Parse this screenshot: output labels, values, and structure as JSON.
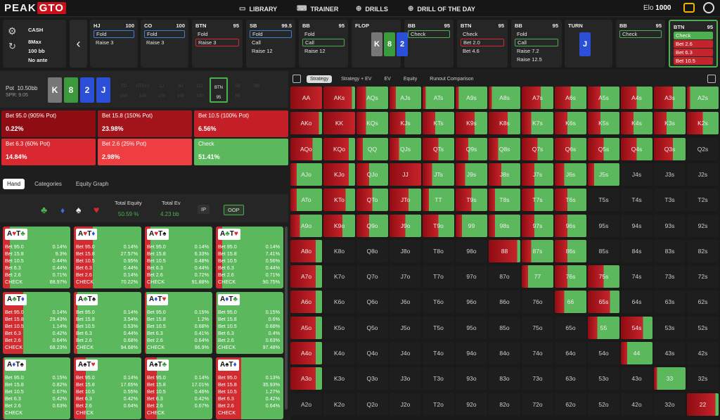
{
  "nav": {
    "logo1": "PEAK",
    "logo2": "GTO",
    "library": "LIBRARY",
    "trainer": "TRAINER",
    "drills": "DRILLS",
    "drill_day": "DRILL OF THE DAY",
    "elo_label": "Elo",
    "elo": "1000"
  },
  "settings": {
    "game": "CASH",
    "table": "8Max",
    "stack": "100 bb",
    "ante": "No ante"
  },
  "columns": [
    {
      "pos": "HJ",
      "stack": "100",
      "actions": [
        "Fold",
        "Raise 3"
      ],
      "sel": 0
    },
    {
      "pos": "CO",
      "stack": "100",
      "actions": [
        "Fold",
        "Raise 3"
      ],
      "sel": 0
    },
    {
      "pos": "BTN",
      "stack": "95",
      "actions": [
        "Fold",
        "Raise 3"
      ],
      "sel": 1
    },
    {
      "pos": "SB",
      "stack": "99.5",
      "actions": [
        "Fold",
        "Call",
        "Raise 12"
      ],
      "sel": 0
    },
    {
      "pos": "BB",
      "stack": "95",
      "actions": [
        "Fold",
        "Call",
        "Raise 12"
      ],
      "sel": 1
    },
    {
      "pos": "FLOP",
      "stack": "",
      "actions": [],
      "sel": -1
    },
    {
      "pos": "BB",
      "stack": "95",
      "actions": [
        "Check"
      ],
      "sel": 0
    },
    {
      "pos": "BTN",
      "stack": "95",
      "actions": [
        "Check",
        "Bet 2.0",
        "Bet 4.6"
      ],
      "sel": 1
    },
    {
      "pos": "BB",
      "stack": "95",
      "actions": [
        "Fold",
        "Call",
        "Raise 7.2",
        "Raise 12.5"
      ],
      "sel": 1
    },
    {
      "pos": "TURN",
      "stack": "",
      "actions": [],
      "sel": -1
    },
    {
      "pos": "BB",
      "stack": "95",
      "actions": [
        "Check"
      ],
      "sel": 0
    },
    {
      "pos": "BTN",
      "stack": "95",
      "actions": [
        "Check",
        "Bet 2.6",
        "Bet 6.3",
        "Bet 10.5"
      ],
      "sel": 0
    }
  ],
  "flop": [
    "K",
    "8",
    "2"
  ],
  "turn": "J",
  "pot": {
    "label": "Pot",
    "value": "10.50bb",
    "spr": "SPR: 9.05"
  },
  "board": [
    "K",
    "8",
    "2",
    "J"
  ],
  "seats": [
    {
      "n": "TO",
      "s": "100"
    },
    {
      "n": "UTG+1",
      "s": "100"
    },
    {
      "n": "LJ",
      "s": "100"
    },
    {
      "n": "HJ",
      "s": "100"
    },
    {
      "n": "CO",
      "s": "100"
    },
    {
      "n": "BTN",
      "s": "95"
    },
    {
      "n": "SB",
      "s": "99"
    },
    {
      "n": "BB",
      "s": ""
    }
  ],
  "strategy": [
    {
      "label": "Bet 95.0 (905% Pot)",
      "pct": "0.22%"
    },
    {
      "label": "Bet 15.8 (150% Pot)",
      "pct": "23.98%"
    },
    {
      "label": "Bet 10.5 (100% Pot)",
      "pct": "6.56%"
    },
    {
      "label": "Bet 6.3 (60% Pot)",
      "pct": "14.84%"
    },
    {
      "label": "Bet 2.6 (25% Pot)",
      "pct": "2.98%"
    },
    {
      "label": "Check",
      "pct": "51.41%"
    }
  ],
  "tabs": [
    "Hand",
    "Categories",
    "Equity Graph"
  ],
  "equity": {
    "total_eq_label": "Total Equity",
    "total_eq": "50.59 %",
    "total_ev_label": "Total Ev",
    "total_ev": "4.23 bb",
    "ip": "IP",
    "oop": "OOP"
  },
  "hands": [
    {
      "c1": "A",
      "s1": "♥",
      "c2": "T",
      "s2": "♣",
      "v": [
        "0.14%",
        "9.3%",
        "0.44%",
        "0.44%",
        "0.71%",
        "88.97%"
      ]
    },
    {
      "c1": "A",
      "s1": "♥",
      "c2": "T",
      "s2": "♦",
      "v": [
        "0.14%",
        "27.57%",
        "0.95%",
        "0.44%",
        "0.14%",
        "70.22%"
      ]
    },
    {
      "c1": "A",
      "s1": "♥",
      "c2": "T",
      "s2": "♠",
      "v": [
        "0.14%",
        "6.33%",
        "0.48%",
        "0.44%",
        "0.72%",
        "91.88%"
      ]
    },
    {
      "c1": "A",
      "s1": "♣",
      "c2": "T",
      "s2": "♥",
      "v": [
        "0.14%",
        "7.41%",
        "0.56%",
        "0.44%",
        "0.71%",
        "90.75%"
      ]
    },
    {
      "c1": "A",
      "s1": "♣",
      "c2": "T",
      "s2": "♦",
      "v": [
        "0.14%",
        "29.43%",
        "1.14%",
        "0.42%",
        "0.64%",
        "68.23%"
      ]
    },
    {
      "c1": "A",
      "s1": "♣",
      "c2": "T",
      "s2": "♠",
      "v": [
        "0.14%",
        "3.54%",
        "0.53%",
        "0.44%",
        "0.68%",
        "94.68%"
      ]
    },
    {
      "c1": "A",
      "s1": "♦",
      "c2": "T",
      "s2": "♥",
      "v": [
        "0.15%",
        "1.2%",
        "0.68%",
        "0.41%",
        "0.64%",
        "96.9%"
      ]
    },
    {
      "c1": "A",
      "s1": "♦",
      "c2": "T",
      "s2": "♣",
      "v": [
        "0.15%",
        "0.6%",
        "0.68%",
        "0.4%",
        "0.63%",
        "97.48%"
      ]
    },
    {
      "c1": "A",
      "s1": "♦",
      "c2": "T",
      "s2": "♠",
      "v": [
        "0.15%",
        "0.82%",
        "0.67%",
        "0.42%",
        "0.63%",
        ""
      ]
    },
    {
      "c1": "A",
      "s1": "♠",
      "c2": "T",
      "s2": "♥",
      "v": [
        "0.14%",
        "17.65%",
        "0.55%",
        "0.42%",
        "0.64%",
        ""
      ]
    },
    {
      "c1": "A",
      "s1": "♠",
      "c2": "T",
      "s2": "♣",
      "v": [
        "0.14%",
        "17.01%",
        "0.46%",
        "0.42%",
        "0.67%",
        ""
      ]
    },
    {
      "c1": "A",
      "s1": "♠",
      "c2": "T",
      "s2": "♦",
      "v": [
        "0.13%",
        "35.93%",
        "1.27%",
        "0.42%",
        "0.64%",
        ""
      ]
    }
  ],
  "row_labels": [
    "Bet 95.0",
    "Bet 15.8",
    "Bet 10.5",
    "Bet 6.3",
    "Bet 2.6",
    "CHECK"
  ],
  "right_tabs": [
    "Strategy",
    "Strategy + EV",
    "EV",
    "Equity",
    "Runout Comparison"
  ],
  "colors": {
    "red": "#c6232a",
    "darkred": "#8e0c12",
    "green": "#5cb85c",
    "bright_red": "#e0353a"
  }
}
